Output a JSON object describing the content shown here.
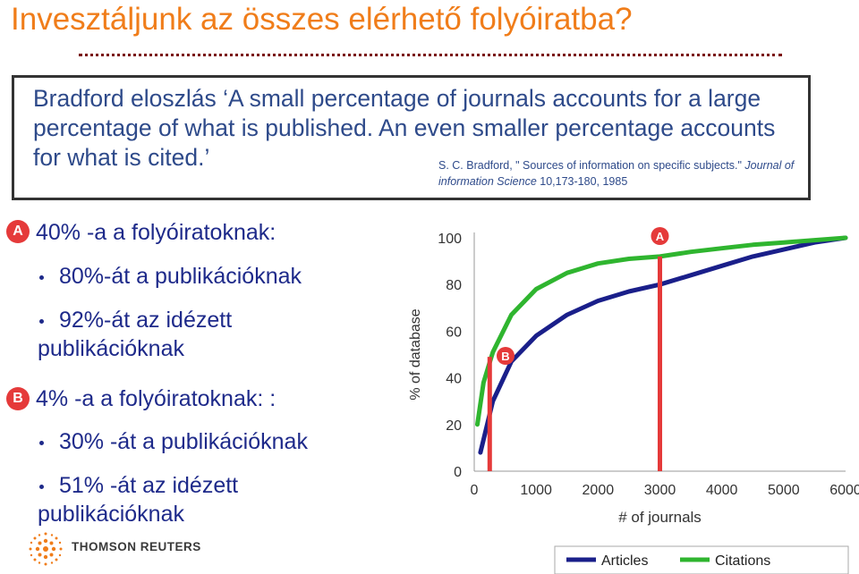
{
  "slide": {
    "title": "Invesztáljunk az összes elérhető folyóiratba?"
  },
  "quote": {
    "line1": "Bradford eloszlás ‘A small percentage of journals accounts for a large",
    "line2": "percentage of what is published. An even smaller percentage accounts",
    "line3": "for what is cited.’",
    "citation_part1": "S. C. Bradford, \" Sources of information on specific subjects.\"",
    "citation_journal": "Journal of information Science",
    "citation_part2": "10,173-180, 1985"
  },
  "points": {
    "a_badge": "A",
    "a_heading": "40% -a a folyóiratoknak:",
    "a_item1": "80%-át a publikációknak",
    "a_item2_line1": "92%-át az idézett",
    "a_item2_line2": "publikációknak",
    "b_badge": "B",
    "b_heading": "4% -a a folyóiratoknak: :",
    "b_item1": "30% -át a publikációknak",
    "b_item2_line1": "51% -át az idézett",
    "b_item2_line2": "publikációknak"
  },
  "brand": {
    "name": "THOMSON REUTERS",
    "logo_icon": "thomson-reuters-globe-icon"
  },
  "colors": {
    "title": "#f07d1a",
    "articles": "#1a1f8a",
    "citations": "#2fb52f",
    "marker": "#e53a3a"
  },
  "chart_data": {
    "type": "line",
    "xlabel": "# of journals",
    "ylabel": "% of database",
    "xlim": [
      0,
      6000
    ],
    "ylim": [
      0,
      100
    ],
    "x_ticks": [
      "0",
      "1000",
      "2000",
      "3000",
      "4000",
      "5000",
      "6000"
    ],
    "y_ticks": [
      "0",
      "20",
      "40",
      "60",
      "80",
      "100"
    ],
    "grid": false,
    "legend_position": "bottom",
    "series": [
      {
        "name": "Articles",
        "color": "#1a1f8a",
        "x": [
          100,
          300,
          600,
          1000,
          1500,
          2000,
          2500,
          3000,
          3500,
          4000,
          4500,
          5000,
          5500,
          6000
        ],
        "y": [
          8,
          30,
          47,
          58,
          67,
          73,
          77,
          80,
          84,
          88,
          92,
          95,
          98,
          100
        ]
      },
      {
        "name": "Citations",
        "color": "#2fb52f",
        "x": [
          50,
          150,
          300,
          600,
          1000,
          1500,
          2000,
          2500,
          3000,
          3500,
          4000,
          4500,
          5000,
          5500,
          6000
        ],
        "y": [
          20,
          38,
          51,
          67,
          78,
          85,
          89,
          91,
          92,
          94,
          95.5,
          97,
          98,
          99,
          100
        ]
      }
    ],
    "markers": [
      {
        "label": "A",
        "x": 3000
      },
      {
        "label": "B",
        "x": 250
      }
    ]
  }
}
